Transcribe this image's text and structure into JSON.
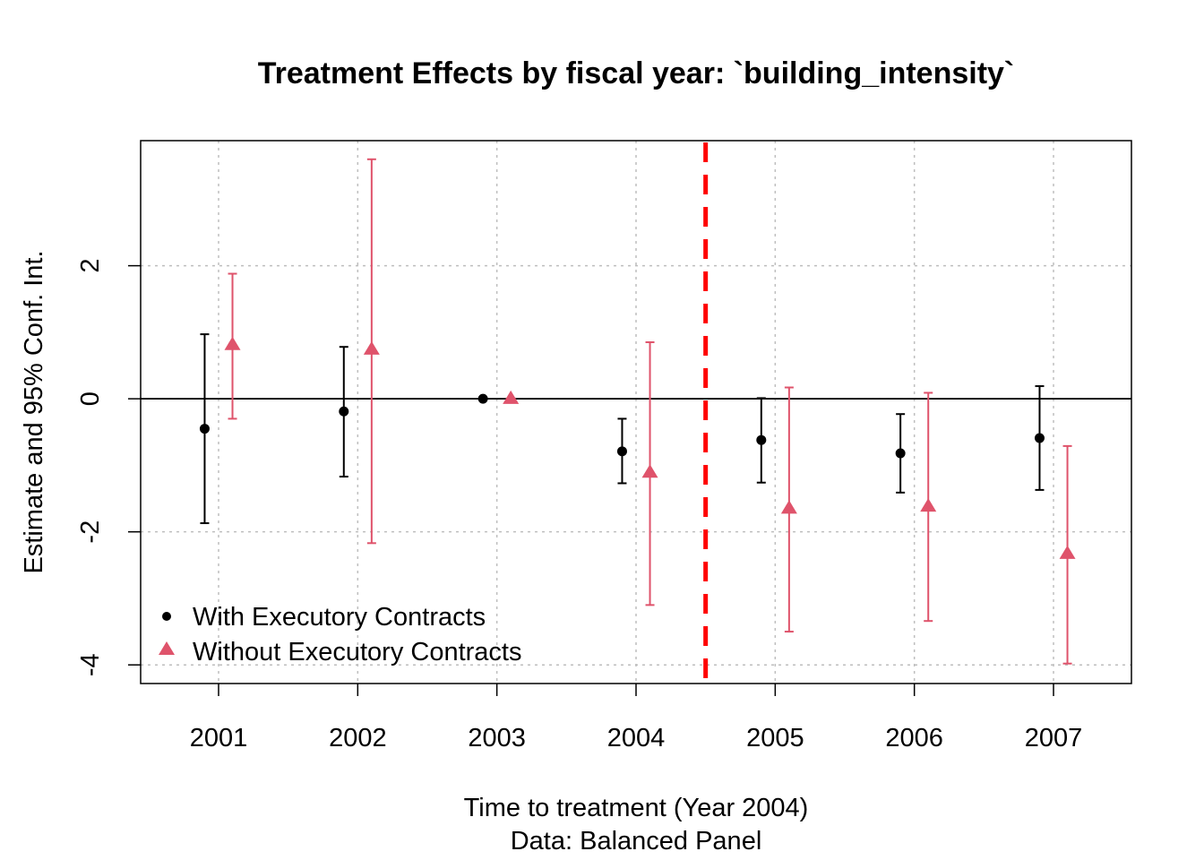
{
  "chart_data": {
    "type": "scatter",
    "title": "Treatment Effects by fiscal year: `building_intensity`",
    "xlabel": "Time to treatment (Year 2004)",
    "xlabel2": "Data: Balanced Panel",
    "ylabel": "Estimate and 95% Conf. Int.",
    "categories": [
      "2001",
      "2002",
      "2003",
      "2004",
      "2005",
      "2006",
      "2007"
    ],
    "x": [
      2001,
      2002,
      2003,
      2004,
      2005,
      2006,
      2007
    ],
    "xlim": [
      2000.44,
      2007.56
    ],
    "ylim": [
      -4.28,
      3.88
    ],
    "yticks": [
      -4,
      -2,
      0,
      2
    ],
    "ytick_labels": [
      "-4",
      "-2",
      "0",
      "2"
    ],
    "grid": true,
    "reference_hline": 0,
    "treatment_vline": 2004.5,
    "legend_position": "bottom-left",
    "colors": {
      "with": "#000000",
      "without": "#DF536B",
      "treatment_line": "#FF0000",
      "grid": "#BEBEBE"
    },
    "series": [
      {
        "name": "With Executory Contracts",
        "marker": "circle",
        "color": "#000000",
        "estimate": [
          -0.45,
          -0.19,
          0.0,
          -0.79,
          -0.62,
          -0.82,
          -0.59
        ],
        "ci_low": [
          -1.87,
          -1.17,
          0.0,
          -1.27,
          -1.26,
          -1.41,
          -1.37
        ],
        "ci_high": [
          0.97,
          0.78,
          0.0,
          -0.3,
          0.01,
          -0.23,
          0.19
        ]
      },
      {
        "name": "Without Executory Contracts",
        "marker": "triangle",
        "color": "#DF536B",
        "estimate": [
          0.81,
          0.74,
          0.0,
          -1.11,
          -1.65,
          -1.62,
          -2.33
        ],
        "ci_low": [
          -0.3,
          -2.17,
          0.0,
          -3.1,
          -3.5,
          -3.34,
          -3.98
        ],
        "ci_high": [
          1.88,
          3.6,
          0.0,
          0.85,
          0.17,
          0.09,
          -0.71
        ]
      }
    ]
  }
}
